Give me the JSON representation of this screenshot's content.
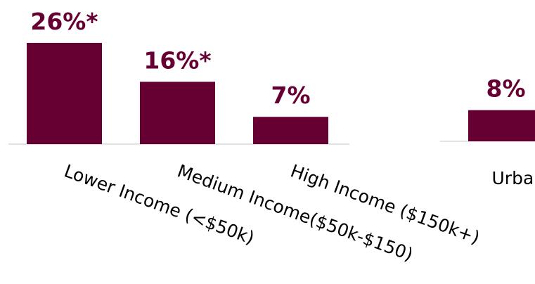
{
  "chart_data": [
    {
      "type": "bar",
      "categories": [
        "Lower Income (<$50k)",
        "Medium Income($50k-$150)",
        "High Income ($150k+)"
      ],
      "values": [
        26,
        16,
        7
      ],
      "value_labels": [
        "26%*",
        "16%*",
        "7%"
      ],
      "color": "#660033"
    },
    {
      "type": "bar",
      "categories": [
        "Urban"
      ],
      "values": [
        8
      ],
      "value_labels": [
        "8%"
      ],
      "color": "#660033"
    }
  ]
}
